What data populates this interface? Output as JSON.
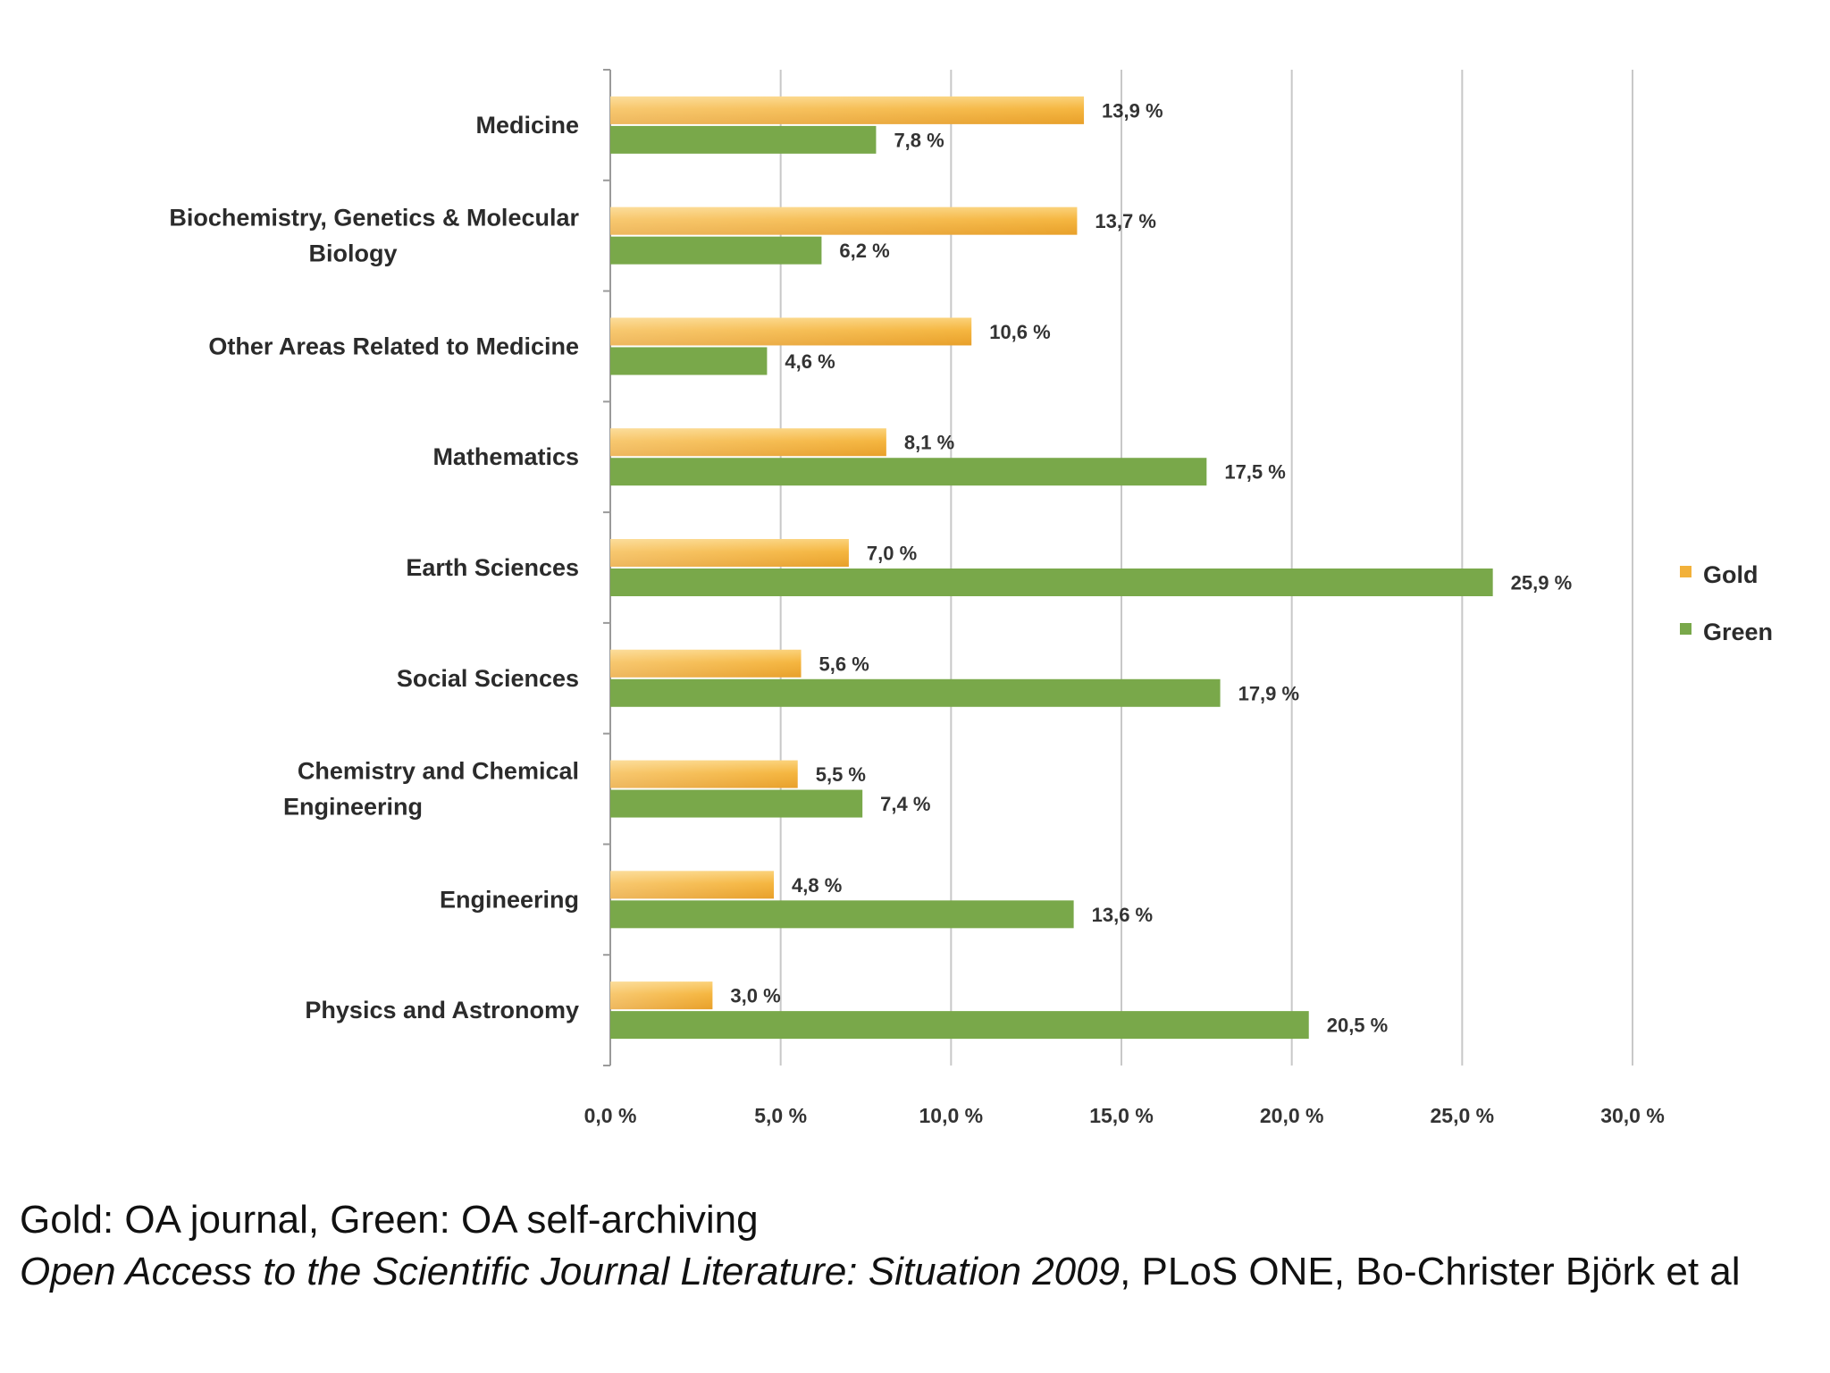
{
  "chart_data": {
    "type": "bar",
    "orientation": "horizontal",
    "categories": [
      [
        "Medicine"
      ],
      [
        "Biochemistry, Genetics & Molecular",
        "Biology"
      ],
      [
        "Other Areas Related to Medicine"
      ],
      [
        "Mathematics"
      ],
      [
        "Earth Sciences"
      ],
      [
        "Social Sciences"
      ],
      [
        "Chemistry and Chemical",
        "Engineering"
      ],
      [
        "Engineering"
      ],
      [
        "Physics and Astronomy"
      ]
    ],
    "series": [
      {
        "name": "Gold",
        "color": "#f2b13a",
        "values": [
          13.9,
          13.7,
          10.6,
          8.1,
          7.0,
          5.6,
          5.5,
          4.8,
          3.0
        ],
        "labels": [
          "13,9 %",
          "13,7 %",
          "10,6 %",
          "8,1 %",
          "7,0 %",
          "5,6 %",
          "5,5 %",
          "4,8 %",
          "3,0 %"
        ]
      },
      {
        "name": "Green",
        "color": "#79a84a",
        "values": [
          7.8,
          6.2,
          4.6,
          17.5,
          25.9,
          17.9,
          7.4,
          13.6,
          20.5
        ],
        "labels": [
          "7,8 %",
          "6,2 %",
          "4,6 %",
          "17,5 %",
          "25,9 %",
          "17,9 %",
          "7,4 %",
          "13,6 %",
          "20,5 %"
        ]
      }
    ],
    "xlim": [
      0,
      30
    ],
    "xticks": [
      0,
      5,
      10,
      15,
      20,
      25,
      30
    ],
    "xtick_labels": [
      "0,0 %",
      "5,0 %",
      "10,0 %",
      "15,0 %",
      "20,0 %",
      "25,0 %",
      "30,0 %"
    ],
    "grid": true,
    "legend_position": "right",
    "title": "",
    "xlabel": "",
    "ylabel": ""
  },
  "caption": {
    "line1": "Gold: OA journal, Green: OA self-archiving",
    "line2_italic": "Open Access to the Scientific Journal Literature: Situation 2009",
    "line2_rest": ", PLoS ONE, Bo-Christer Björk et al"
  }
}
